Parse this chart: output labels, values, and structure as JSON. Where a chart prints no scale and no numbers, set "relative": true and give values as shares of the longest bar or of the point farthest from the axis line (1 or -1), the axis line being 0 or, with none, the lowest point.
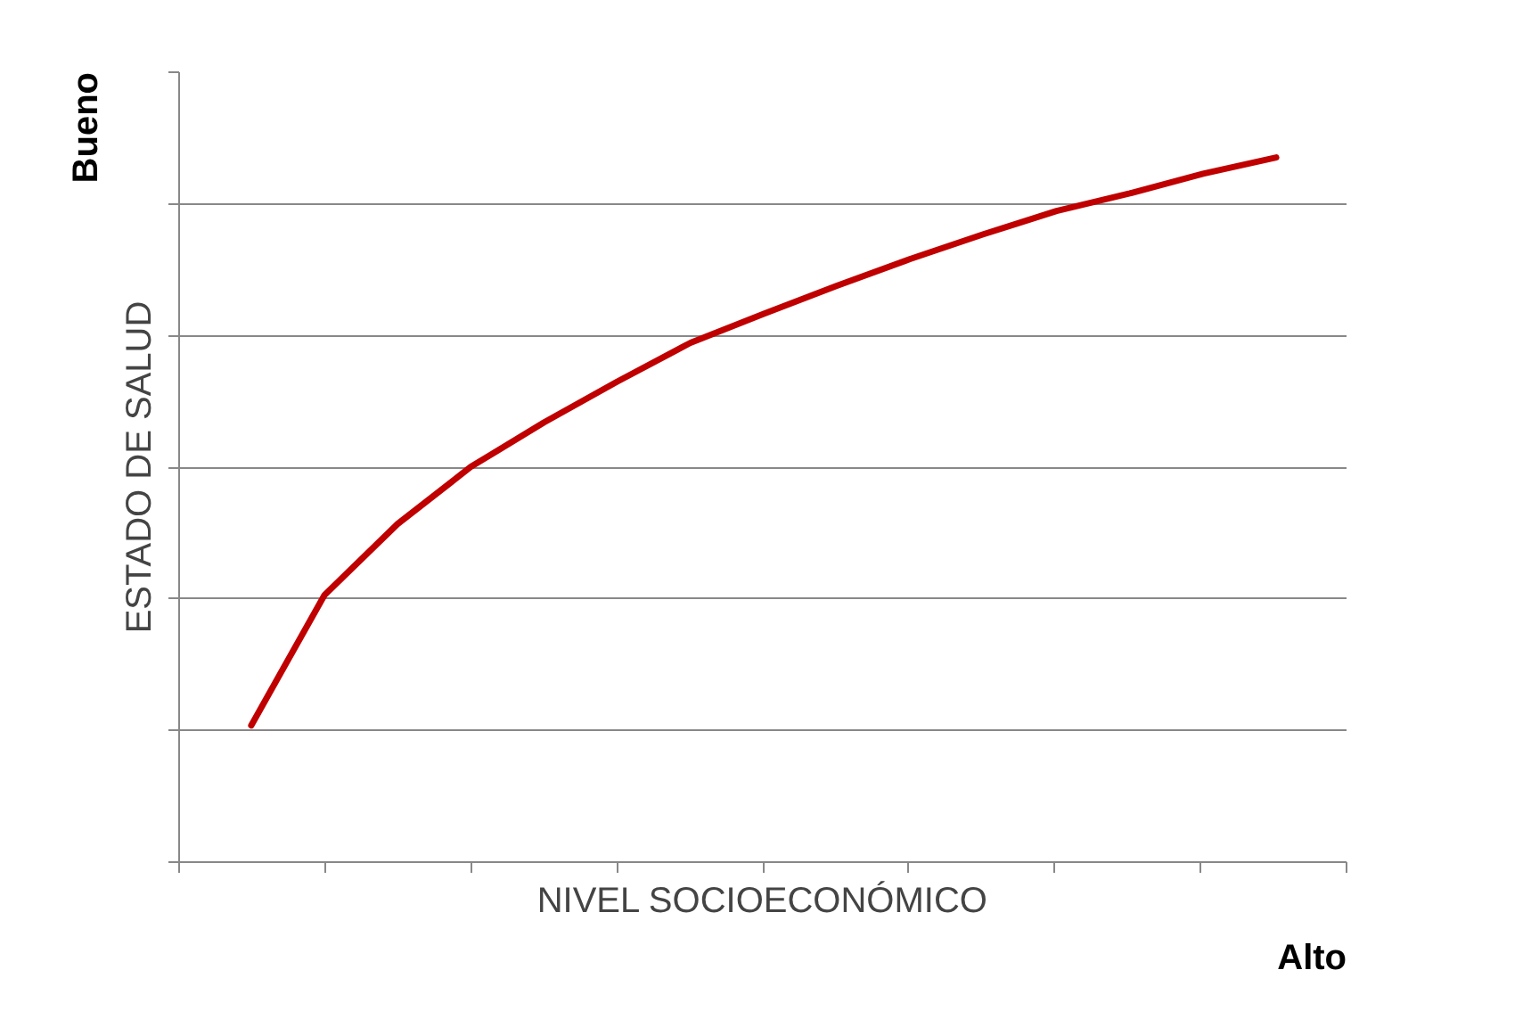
{
  "chart_data": {
    "type": "line",
    "relative": true,
    "xlabel": "NIVEL SOCIOECONÓMICO",
    "ylabel": "ESTADO DE SALUD",
    "annotations": [
      "Bueno",
      "Alto"
    ],
    "categories": [
      null,
      null,
      null,
      null,
      null,
      null,
      null,
      null,
      null,
      null,
      null,
      null,
      null,
      null,
      null
    ],
    "series": [
      {
        "color": "#c00000",
        "values": [
          0.194,
          0.379,
          0.48,
          0.561,
          0.624,
          0.682,
          0.737,
          0.778,
          0.818,
          0.856,
          0.891,
          0.924,
          0.949,
          0.977,
          1.0
        ]
      }
    ],
    "grid": "y",
    "marker": "none",
    "line_style": "solid"
  }
}
